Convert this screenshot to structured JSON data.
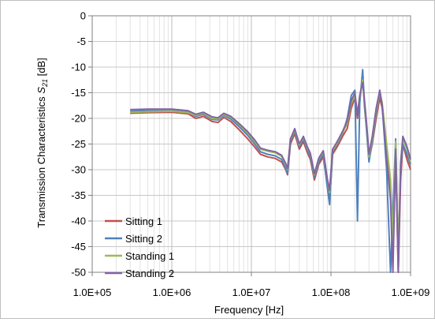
{
  "chart_data": {
    "type": "line",
    "xlabel": "Frequency [Hz]",
    "ylabel_main": "Transmission Characteristics ",
    "ylabel_symbol": "S",
    "ylabel_subscript": "21",
    "ylabel_unit": " [dB]",
    "x_scale": "log",
    "xlim": [
      100000,
      1000000000
    ],
    "ylim": [
      -50,
      0
    ],
    "x_ticks": [
      {
        "value": 100000,
        "label": "1.0E+05"
      },
      {
        "value": 1000000,
        "label": "1.0E+06"
      },
      {
        "value": 10000000,
        "label": "1.0E+07"
      },
      {
        "value": 100000000,
        "label": "1.0E+08"
      },
      {
        "value": 1000000000,
        "label": "1.0E+09"
      }
    ],
    "y_ticks": [
      {
        "value": 0,
        "label": "0"
      },
      {
        "value": -5,
        "label": "-5"
      },
      {
        "value": -10,
        "label": "-10"
      },
      {
        "value": -15,
        "label": "-15"
      },
      {
        "value": -20,
        "label": "-20"
      },
      {
        "value": -25,
        "label": "-25"
      },
      {
        "value": -30,
        "label": "-30"
      },
      {
        "value": -35,
        "label": "-35"
      },
      {
        "value": -40,
        "label": "-40"
      },
      {
        "value": -45,
        "label": "-45"
      },
      {
        "value": -50,
        "label": "-50"
      }
    ],
    "grid": "major and minor (log x)",
    "legend_position": "lower-left",
    "x": [
      300000,
      500000,
      1000000,
      1600000,
      2000000,
      2500000,
      3200000,
      3800000,
      4500000,
      5500000,
      7000000,
      9000000,
      11000000,
      13000000,
      16000000,
      20000000,
      24000000,
      27000000,
      28500000,
      31000000,
      35000000,
      40000000,
      45000000,
      50000000,
      55000000,
      62000000,
      70000000,
      80000000,
      90000000,
      96000000,
      105000000,
      115000000,
      125000000,
      140000000,
      160000000,
      180000000,
      200000000,
      215000000,
      230000000,
      250000000,
      265000000,
      280000000,
      300000000,
      330000000,
      370000000,
      410000000,
      440000000,
      500000000,
      560000000,
      600000000,
      650000000,
      700000000,
      750000000,
      800000000,
      900000000,
      1000000000
    ],
    "series": [
      {
        "name": "Sitting 1",
        "color": "#c0504d",
        "values": [
          -19.0,
          -18.9,
          -18.8,
          -19.1,
          -20.0,
          -19.6,
          -20.6,
          -20.8,
          -19.8,
          -20.6,
          -22.2,
          -24.0,
          -25.6,
          -27.0,
          -27.5,
          -27.8,
          -28.5,
          -30.0,
          -31.0,
          -25.0,
          -23.0,
          -26.0,
          -24.5,
          -26.5,
          -28.0,
          -32.0,
          -29.0,
          -27.5,
          -33.0,
          -36.0,
          -27.0,
          -26.0,
          -25.0,
          -23.5,
          -22.0,
          -18.0,
          -16.0,
          -20.0,
          -16.5,
          -12.0,
          -18.0,
          -22.0,
          -28.0,
          -25.0,
          -20.0,
          -16.0,
          -18.0,
          -27.0,
          -34.0,
          -46.0,
          -27.0,
          -50.0,
          -32.0,
          -25.0,
          -28.0,
          -30.0
        ]
      },
      {
        "name": "Sitting 2",
        "color": "#4f81bd",
        "values": [
          -18.6,
          -18.5,
          -18.5,
          -18.8,
          -19.6,
          -19.2,
          -20.2,
          -20.3,
          -19.4,
          -20.1,
          -21.6,
          -23.3,
          -25.0,
          -26.5,
          -27.0,
          -27.3,
          -28.0,
          -29.8,
          -30.8,
          -24.5,
          -22.5,
          -25.5,
          -24.0,
          -26.0,
          -27.5,
          -31.5,
          -28.5,
          -27.0,
          -33.5,
          -36.8,
          -26.5,
          -25.5,
          -24.5,
          -23.0,
          -20.0,
          -15.5,
          -14.5,
          -40.0,
          -17.0,
          -10.5,
          -17.5,
          -22.5,
          -28.5,
          -24.5,
          -19.0,
          -15.0,
          -17.5,
          -30.0,
          -50.0,
          -38.0,
          -24.0,
          -48.0,
          -30.0,
          -25.0,
          -27.0,
          -29.0
        ]
      },
      {
        "name": "Standing 1",
        "color": "#9bbb59",
        "values": [
          -18.8,
          -18.7,
          -18.6,
          -18.9,
          -19.4,
          -19.0,
          -20.0,
          -20.1,
          -19.2,
          -19.8,
          -21.2,
          -22.9,
          -24.5,
          -26.0,
          -26.4,
          -26.7,
          -27.4,
          -29.0,
          -30.0,
          -24.2,
          -22.2,
          -25.2,
          -23.7,
          -25.6,
          -27.0,
          -31.0,
          -28.0,
          -26.5,
          -32.0,
          -34.5,
          -26.3,
          -25.3,
          -24.3,
          -22.8,
          -21.0,
          -17.0,
          -15.5,
          -19.0,
          -15.8,
          -12.5,
          -17.0,
          -21.5,
          -27.5,
          -24.0,
          -18.5,
          -14.8,
          -17.0,
          -25.0,
          -32.0,
          -44.0,
          -24.5,
          -47.0,
          -28.5,
          -24.0,
          -26.0,
          -28.5
        ]
      },
      {
        "name": "Standing 2",
        "color": "#8064a2",
        "values": [
          -18.3,
          -18.2,
          -18.2,
          -18.5,
          -19.2,
          -18.8,
          -19.7,
          -19.9,
          -19.0,
          -19.6,
          -21.0,
          -22.6,
          -24.2,
          -25.8,
          -26.2,
          -26.5,
          -27.2,
          -28.8,
          -29.8,
          -24.0,
          -22.0,
          -25.0,
          -23.5,
          -25.4,
          -26.8,
          -30.8,
          -27.8,
          -26.3,
          -31.8,
          -34.0,
          -26.0,
          -25.0,
          -24.0,
          -22.5,
          -20.5,
          -16.5,
          -15.0,
          -19.5,
          -15.5,
          -13.0,
          -16.8,
          -21.0,
          -27.0,
          -23.5,
          -18.0,
          -14.5,
          -17.5,
          -28.0,
          -36.0,
          -50.0,
          -26.0,
          -50.0,
          -29.0,
          -23.5,
          -25.5,
          -28.0
        ]
      }
    ]
  }
}
